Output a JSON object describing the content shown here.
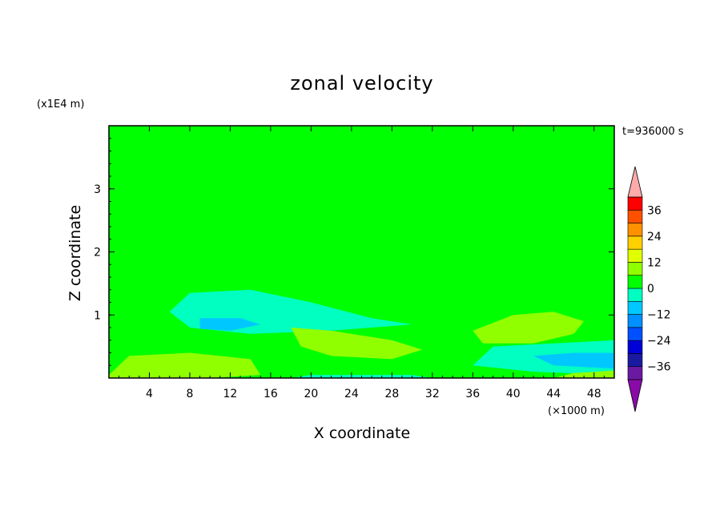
{
  "chart_data": {
    "type": "heatmap",
    "title": "zonal velocity",
    "xlabel": "X coordinate",
    "ylabel": "Z coordinate",
    "x_unit": "(×1000 m)",
    "y_unit": "(x1E4 m)",
    "time_label": "t=936000 s",
    "xlim": [
      0,
      50
    ],
    "ylim": [
      0,
      4
    ],
    "x_ticks": [
      4,
      8,
      12,
      16,
      20,
      24,
      28,
      32,
      36,
      40,
      44,
      48
    ],
    "y_ticks": [
      1,
      2,
      3
    ],
    "colorbar": {
      "levels": [
        -42,
        -36,
        -30,
        -24,
        -18,
        -12,
        -6,
        0,
        6,
        12,
        18,
        24,
        30,
        36,
        42
      ],
      "tick_labels": [
        "36",
        "24",
        "12",
        "0",
        "−12",
        "−24",
        "−36"
      ],
      "tick_values": [
        36,
        24,
        12,
        0,
        -12,
        -24,
        -36
      ],
      "colors": [
        "#6a1aa0",
        "#1a1aa0",
        "#0000d8",
        "#0050ff",
        "#0090ff",
        "#00c8ff",
        "#00ffc0",
        "#00ff00",
        "#90ff00",
        "#e0ff00",
        "#ffd000",
        "#ff9000",
        "#ff5000",
        "#ff0000",
        "#ffaaaa"
      ],
      "under_color": "#8a0aa8",
      "over_color": "#ffaaaa"
    },
    "background_value": 0,
    "contour_regions": [
      {
        "value": 3,
        "comment": "upper mid band",
        "poly": [
          [
            0,
            3.1
          ],
          [
            12,
            3.05
          ],
          [
            25,
            3.0
          ],
          [
            40,
            2.95
          ],
          [
            50,
            2.9
          ],
          [
            50,
            3.5
          ],
          [
            40,
            3.4
          ],
          [
            30,
            3.5
          ],
          [
            20,
            3.6
          ],
          [
            10,
            3.5
          ],
          [
            0,
            3.4
          ]
        ]
      },
      {
        "value": 3,
        "poly": [
          [
            0,
            2.6
          ],
          [
            10,
            2.65
          ],
          [
            20,
            2.55
          ],
          [
            32,
            2.55
          ],
          [
            44,
            2.6
          ],
          [
            50,
            2.55
          ],
          [
            50,
            2.1
          ],
          [
            44,
            2.0
          ],
          [
            38,
            2.1
          ],
          [
            30,
            2.25
          ],
          [
            20,
            2.3
          ],
          [
            10,
            2.35
          ],
          [
            0,
            2.4
          ]
        ]
      },
      {
        "value": 3,
        "poly": [
          [
            0,
            1.5
          ],
          [
            4,
            1.7
          ],
          [
            10,
            1.6
          ],
          [
            18,
            1.3
          ],
          [
            30,
            1.0
          ],
          [
            40,
            1.05
          ],
          [
            50,
            1.1
          ],
          [
            50,
            0
          ],
          [
            0,
            0
          ]
        ]
      },
      {
        "value": 3,
        "poly": [
          [
            0,
            4.0
          ],
          [
            50,
            4.0
          ],
          [
            50,
            3.6
          ],
          [
            36,
            3.7
          ],
          [
            18,
            3.75
          ],
          [
            0,
            3.8
          ]
        ]
      },
      {
        "value": -3,
        "poly": [
          [
            8,
            1.35
          ],
          [
            14,
            1.4
          ],
          [
            20,
            1.2
          ],
          [
            26,
            0.95
          ],
          [
            30,
            0.85
          ],
          [
            22,
            0.75
          ],
          [
            14,
            0.7
          ],
          [
            8,
            0.8
          ],
          [
            6,
            1.05
          ]
        ]
      },
      {
        "value": -8,
        "poly": [
          [
            9,
            0.95
          ],
          [
            13,
            0.95
          ],
          [
            15,
            0.85
          ],
          [
            12,
            0.75
          ],
          [
            9,
            0.78
          ]
        ]
      },
      {
        "value": -3,
        "poly": [
          [
            38,
            0.5
          ],
          [
            44,
            0.55
          ],
          [
            50,
            0.6
          ],
          [
            50,
            0.05
          ],
          [
            42,
            0.1
          ],
          [
            36,
            0.2
          ]
        ]
      },
      {
        "value": -8,
        "poly": [
          [
            42,
            0.35
          ],
          [
            46,
            0.4
          ],
          [
            50,
            0.4
          ],
          [
            50,
            0.15
          ],
          [
            44,
            0.2
          ]
        ]
      },
      {
        "value": -3,
        "poly": [
          [
            18,
            0.0
          ],
          [
            32,
            0.0
          ],
          [
            30,
            0.05
          ],
          [
            20,
            0.05
          ]
        ]
      },
      {
        "value": 6,
        "poly": [
          [
            18,
            0.8
          ],
          [
            22,
            0.75
          ],
          [
            28,
            0.6
          ],
          [
            31,
            0.45
          ],
          [
            28,
            0.3
          ],
          [
            22,
            0.35
          ],
          [
            19,
            0.5
          ]
        ]
      },
      {
        "value": 11,
        "poly": [
          [
            20,
            0.62
          ],
          [
            25,
            0.6
          ],
          [
            28,
            0.45
          ],
          [
            25,
            0.38
          ],
          [
            21,
            0.45
          ]
        ]
      },
      {
        "value": 6,
        "poly": [
          [
            36,
            0.75
          ],
          [
            40,
            1.0
          ],
          [
            44,
            1.05
          ],
          [
            47,
            0.9
          ],
          [
            46,
            0.7
          ],
          [
            42,
            0.55
          ],
          [
            37,
            0.55
          ]
        ]
      },
      {
        "value": 11,
        "poly": [
          [
            40,
            0.85
          ],
          [
            43,
            0.9
          ],
          [
            45,
            0.78
          ],
          [
            42,
            0.68
          ],
          [
            40,
            0.72
          ]
        ]
      },
      {
        "value": 6,
        "poly": [
          [
            0,
            0.05
          ],
          [
            2,
            0.35
          ],
          [
            8,
            0.4
          ],
          [
            14,
            0.3
          ],
          [
            15,
            0.05
          ],
          [
            10,
            0.0
          ],
          [
            0,
            0.0
          ]
        ]
      },
      {
        "value": 11,
        "poly": [
          [
            3,
            0.25
          ],
          [
            8,
            0.28
          ],
          [
            12,
            0.18
          ],
          [
            8,
            0.1
          ],
          [
            4,
            0.12
          ]
        ]
      },
      {
        "value": 6,
        "poly": [
          [
            44,
            0.0
          ],
          [
            50,
            0.0
          ],
          [
            50,
            0.12
          ],
          [
            46,
            0.08
          ]
        ]
      }
    ]
  }
}
